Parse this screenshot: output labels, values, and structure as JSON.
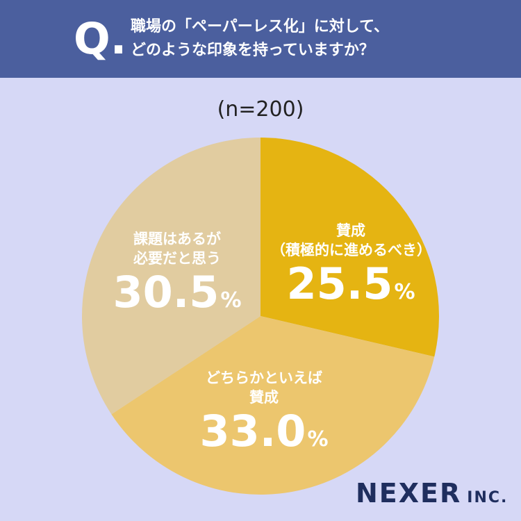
{
  "header": {
    "q_mark": "Q.",
    "question_line1": "職場の「ペーパーレス化」に対して、",
    "question_line2": "どのような印象を持っていますか？"
  },
  "sample_size": "(n=200)",
  "chart_data": {
    "type": "pie",
    "slices": [
      {
        "label_line1": "賛成",
        "label_line2": "（積極的に進めるべき）",
        "value": 25.5,
        "value_text": "25.5",
        "color": "#e5b412"
      },
      {
        "label_line1": "どちらかといえば",
        "label_line2": "賛成",
        "value": 33.0,
        "value_text": "33.0",
        "color": "#ecc66e"
      },
      {
        "label_line1": "課題はあるが",
        "label_line2": "必要だと思う",
        "value": 30.5,
        "value_text": "30.5",
        "color": "#e1cca0"
      }
    ],
    "unit": "%"
  },
  "logo": {
    "main": "NEXER",
    "suffix": "INC."
  },
  "colors": {
    "background": "#d6d8f6",
    "header": "#4b5f9e"
  }
}
